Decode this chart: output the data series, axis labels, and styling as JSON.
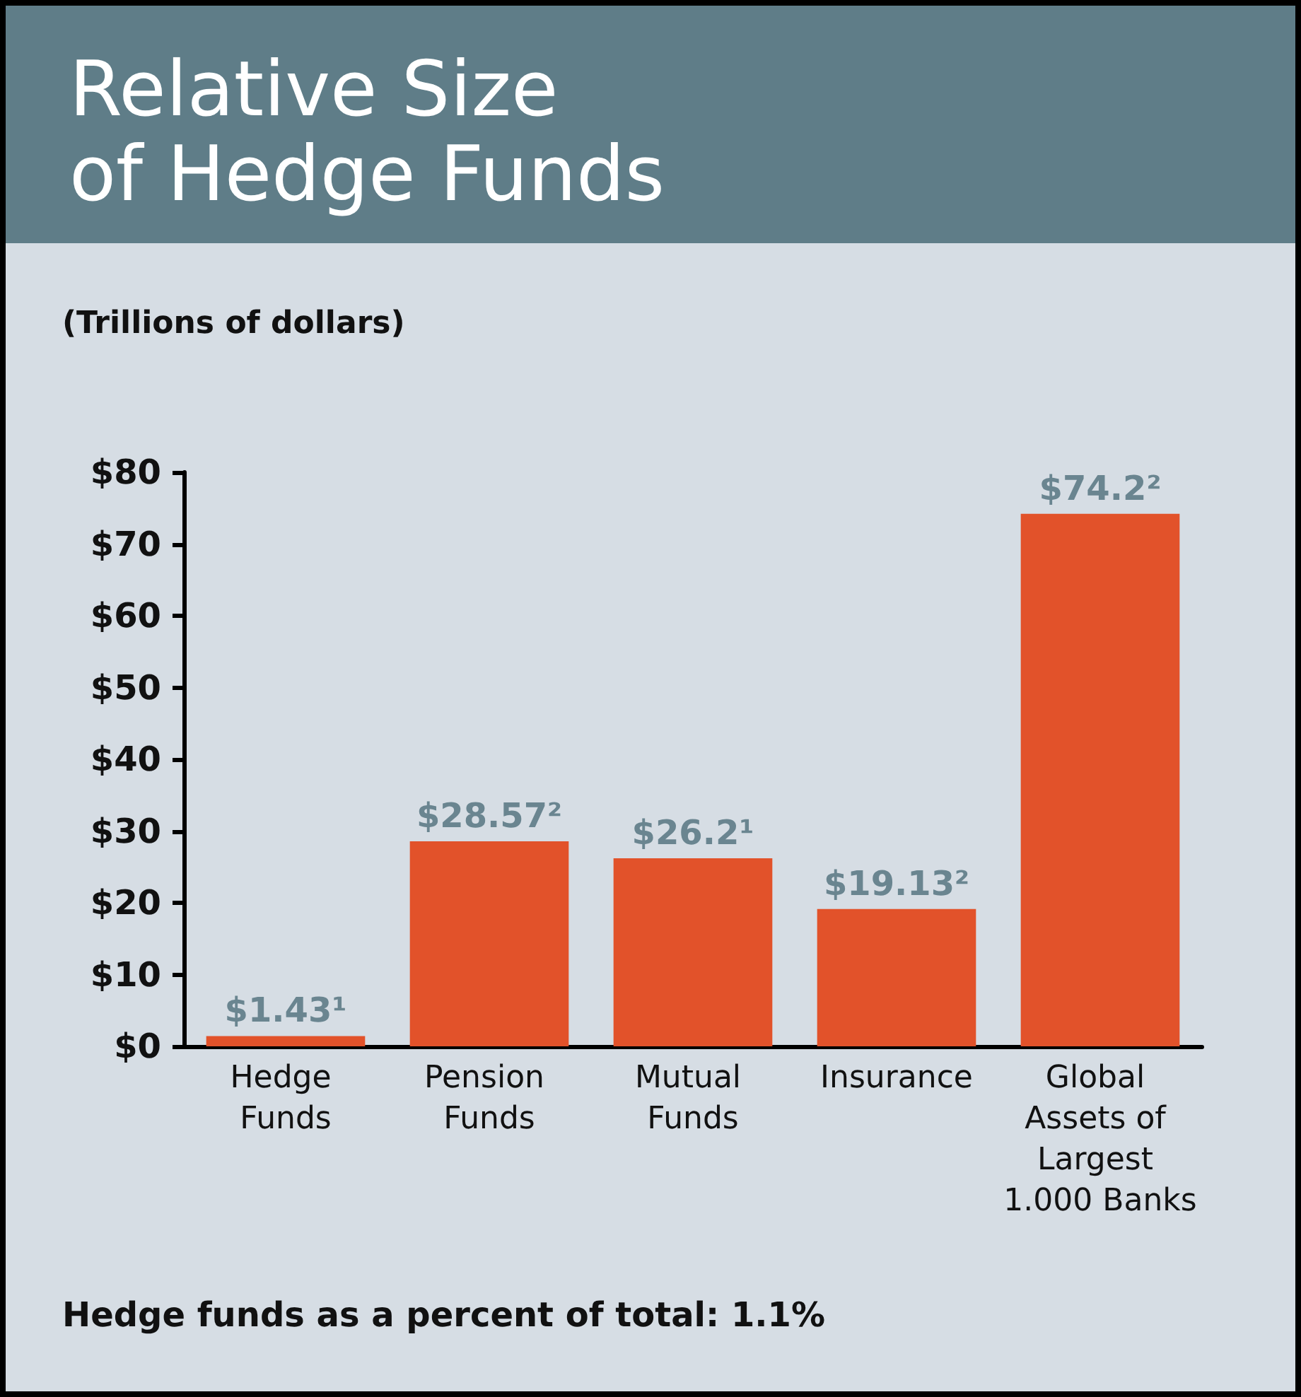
{
  "chart_data": {
    "type": "bar",
    "title": "Relative Size\nof Hedge Funds",
    "ylabel": "(Trillions of dollars)",
    "categories": [
      "Hedge Funds",
      "Pension Funds",
      "Mutual Funds",
      "Insurance",
      "Global Assets of Largest 1.000 Banks"
    ],
    "values": [
      1.43,
      28.57,
      26.2,
      19.13,
      74.2
    ],
    "value_labels": [
      "$1.43¹",
      "$28.57²",
      "$26.2¹",
      "$19.13²",
      "$74.2²"
    ],
    "color": "#e2522a",
    "ylim": [
      0,
      80
    ],
    "yticks": [
      {
        "value": 0,
        "label": "$0"
      },
      {
        "value": 10,
        "label": "$10"
      },
      {
        "value": 20,
        "label": "$20"
      },
      {
        "value": 30,
        "label": "$30"
      },
      {
        "value": 40,
        "label": "$40"
      },
      {
        "value": 50,
        "label": "$50"
      },
      {
        "value": 60,
        "label": "$60"
      },
      {
        "value": 70,
        "label": "$70"
      },
      {
        "value": 80,
        "label": "$80"
      }
    ],
    "annotations": [
      "Hedge funds as a percent of total: 1.1%"
    ]
  }
}
